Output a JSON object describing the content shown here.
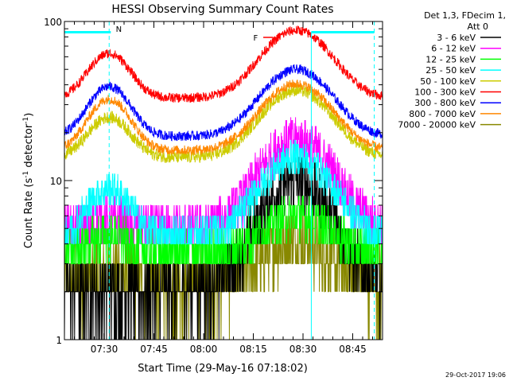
{
  "chart_data": {
    "type": "line",
    "title": "HESSI Observing Summary Count Rates",
    "xlabel": "Start Time (29-May-16 07:18:02)",
    "ylabel_main": "Count Rate (s",
    "ylabel_sup1": "-1",
    "ylabel_mid": " detector",
    "ylabel_sup2": "-1",
    "ylabel_end": ")",
    "y_scale": "log",
    "ylim": [
      1,
      100
    ],
    "xlim_minutes": [
      0,
      96
    ],
    "x_ticks": [
      "07:30",
      "07:45",
      "08:00",
      "08:15",
      "08:30",
      "08:45"
    ],
    "y_ticks": [
      "1",
      "10",
      "100"
    ],
    "legend_header": [
      "Det 1,3, FDecim 1,",
      "Att 0"
    ],
    "legend_placement": "right",
    "timestamp": "29-Oct-2017 19:06",
    "flags": [
      {
        "label": "N",
        "color": "#00ffff"
      },
      {
        "label": "F",
        "color": "#ff0000"
      }
    ],
    "series": [
      {
        "name": "3 - 6 keV",
        "color": "#000000",
        "baseline": 2.0,
        "peak1": 0,
        "peak2": 8.0,
        "noise": 0.45,
        "floor": 1
      },
      {
        "name": "6 - 12 keV",
        "color": "#ff00ff",
        "baseline": 5.0,
        "peak1": 0.5,
        "peak2": 13.0,
        "noise": 0.35,
        "floor": 3
      },
      {
        "name": "12 - 25 keV",
        "color": "#00ff00",
        "baseline": 3.5,
        "peak1": 1.0,
        "peak2": 2.5,
        "noise": 0.3,
        "floor": 2
      },
      {
        "name": "25 - 50 keV",
        "color": "#00ffff",
        "baseline": 4.5,
        "peak1": 4.5,
        "peak2": 9.5,
        "noise": 0.25,
        "floor": 3
      },
      {
        "name": "50 - 100 keV",
        "color": "#cccc00",
        "baseline": 14,
        "peak1": 11,
        "peak2": 23,
        "noise": 0.09,
        "floor": 10
      },
      {
        "name": "100 - 300 keV",
        "color": "#ff0000",
        "baseline": 33,
        "peak1": 30,
        "peak2": 55,
        "noise": 0.07,
        "floor": 20
      },
      {
        "name": "300 - 800 keV",
        "color": "#0000ff",
        "baseline": 19,
        "peak1": 20,
        "peak2": 31,
        "noise": 0.07,
        "floor": 12
      },
      {
        "name": "800 - 7000 keV",
        "color": "#ff8800",
        "baseline": 15.5,
        "peak1": 17,
        "peak2": 25,
        "noise": 0.07,
        "floor": 10
      },
      {
        "name": "7000 - 20000 keV",
        "color": "#888800",
        "baseline": 2.2,
        "peak1": 0.5,
        "peak2": 2.0,
        "noise": 0.5,
        "floor": 1
      }
    ]
  }
}
